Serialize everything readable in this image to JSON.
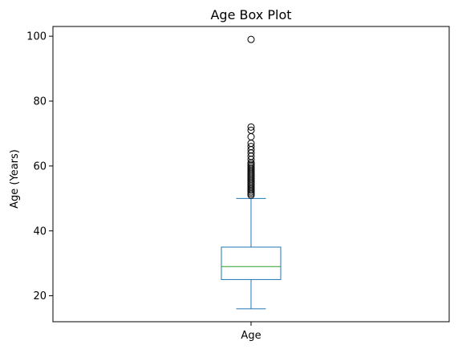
{
  "chart_data": {
    "type": "box",
    "title": "Age Box Plot",
    "xlabel": "",
    "ylabel": "Age (Years)",
    "categories": [
      "Age"
    ],
    "ylim": [
      12,
      103
    ],
    "yticks": [
      20,
      40,
      60,
      80,
      100
    ],
    "grid": false,
    "legend": "none",
    "boxes": [
      {
        "name": "Age",
        "whisker_low": 16,
        "q1": 25,
        "median": 29,
        "q3": 35,
        "whisker_high": 50,
        "outliers": [
          51,
          51.5,
          52,
          52.5,
          53,
          53.5,
          54,
          54.5,
          55,
          55.5,
          56,
          56.5,
          57,
          57.5,
          58,
          58.5,
          59,
          59.5,
          60,
          60.5,
          61,
          62,
          63,
          64,
          65,
          66,
          67,
          69,
          71,
          72,
          99
        ]
      }
    ],
    "colors": {
      "box": "#1f77b4",
      "median": "#2ca02c",
      "outlier": "#000000",
      "axis": "#000000"
    }
  }
}
